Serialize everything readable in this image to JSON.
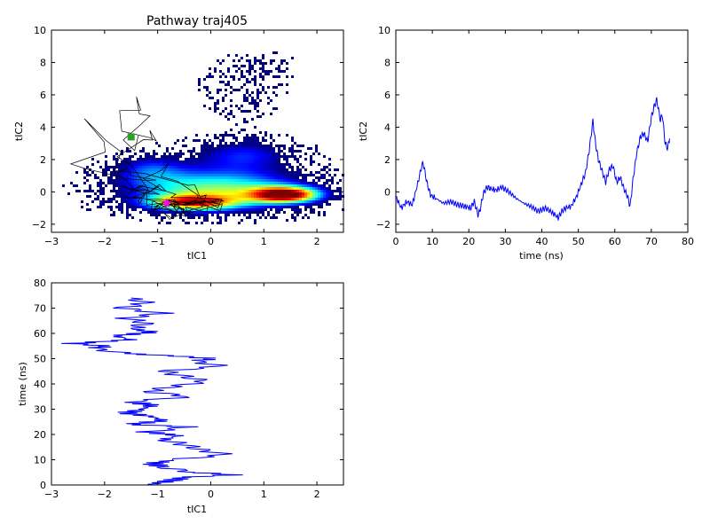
{
  "chart_data": [
    {
      "type": "heatmap",
      "title": "Pathway traj405",
      "xlabel": "tIC1",
      "ylabel": "tIC2",
      "xlim": [
        -3,
        2.5
      ],
      "ylim": [
        -2.5,
        10
      ],
      "xticks": [
        "−3",
        "−2",
        "−1",
        "0",
        "1",
        "2"
      ],
      "yticks": [
        "−2",
        "0",
        "2",
        "4",
        "6",
        "8",
        "10"
      ],
      "density_blobs": [
        {
          "cx": 0.1,
          "cy": 0.2,
          "sx": 1.2,
          "sy": 0.9,
          "w": 1.0
        },
        {
          "cx": 1.4,
          "cy": -0.1,
          "sx": 0.45,
          "sy": 0.35,
          "w": 1.4
        },
        {
          "cx": -0.4,
          "cy": -0.6,
          "sx": 0.6,
          "sy": 0.35,
          "w": 1.0
        },
        {
          "cx": 0.6,
          "cy": 2.4,
          "sx": 0.7,
          "sy": 0.7,
          "w": 0.5
        },
        {
          "cx": -1.2,
          "cy": 1.5,
          "sx": 0.5,
          "sy": 0.7,
          "w": 0.45
        },
        {
          "cx": 0.6,
          "cy": 6.5,
          "sx": 0.55,
          "sy": 1.3,
          "w": 0.18
        },
        {
          "cx": 1.0,
          "cy": 8.0,
          "sx": 0.35,
          "sy": 0.5,
          "w": 0.15
        }
      ],
      "start_marker": {
        "x": -1.5,
        "y": 3.4,
        "color": "#2ca02c"
      },
      "end_marker": {
        "x": -0.83,
        "y": -0.7,
        "color": "#ff00ff"
      },
      "path_color": "#000000"
    },
    {
      "type": "line",
      "xlabel": "time (ns)",
      "ylabel": "tIC2",
      "xlim": [
        0,
        80
      ],
      "ylim": [
        -2.5,
        10
      ],
      "xticks": [
        "0",
        "10",
        "20",
        "30",
        "40",
        "50",
        "60",
        "70",
        "80"
      ],
      "yticks": [
        "−2",
        "0",
        "2",
        "4",
        "6",
        "8",
        "10"
      ],
      "series": [
        {
          "color": "#0000ff",
          "x": [
            0,
            1.5,
            3,
            4.5,
            6,
            7,
            7.5,
            8.5,
            9.5,
            11,
            13,
            15,
            17,
            19,
            20.5,
            21.5,
            22.5,
            23,
            24,
            25,
            26,
            27.5,
            29,
            31,
            33,
            35,
            37,
            39,
            41,
            43,
            44.5,
            45.5,
            46.5,
            48,
            49.5,
            51,
            52,
            53,
            54,
            54.7,
            55.5,
            56.5,
            57.5,
            58.5,
            59.5,
            60.5,
            61.5,
            62.5,
            63.5,
            64.2,
            65,
            66,
            67,
            68,
            69,
            70,
            70.8,
            71.5,
            72.5,
            73,
            73.8,
            74.5,
            75
          ],
          "y": [
            -0.3,
            -1.0,
            -0.6,
            -0.8,
            0.5,
            1.5,
            1.8,
            0.6,
            -0.2,
            -0.4,
            -0.7,
            -0.6,
            -0.8,
            -0.9,
            -1.0,
            -0.6,
            -1.4,
            -1.2,
            -0.1,
            0.3,
            0.2,
            0.1,
            0.3,
            0.0,
            -0.4,
            -0.7,
            -0.9,
            -1.2,
            -1.0,
            -1.3,
            -1.6,
            -1.2,
            -1.0,
            -0.9,
            -0.3,
            0.6,
            1.2,
            2.6,
            4.4,
            3.0,
            2.0,
            1.3,
            0.6,
            1.4,
            1.6,
            0.6,
            0.9,
            0.2,
            -0.3,
            -0.9,
            0.8,
            2.4,
            3.4,
            3.6,
            3.1,
            4.6,
            5.3,
            5.7,
            4.4,
            4.8,
            3.0,
            2.7,
            3.3
          ]
        }
      ]
    },
    {
      "type": "line",
      "xlabel": "tIC1",
      "ylabel": "time (ns)",
      "xlim": [
        -3,
        2.5
      ],
      "ylim": [
        0,
        80
      ],
      "xticks": [
        "−3",
        "−2",
        "−1",
        "0",
        "1",
        "2"
      ],
      "yticks": [
        "0",
        "10",
        "20",
        "30",
        "40",
        "50",
        "60",
        "70",
        "80"
      ],
      "series": [
        {
          "color": "#0000ff",
          "x": [
            -1.2,
            -0.8,
            -0.5,
            0.4,
            -0.3,
            -0.9,
            -1.1,
            -0.7,
            0.3,
            -0.2,
            -0.5,
            -0.9,
            -0.6,
            -1.2,
            -0.4,
            -1.5,
            -0.9,
            -1.1,
            -1.6,
            -1.3,
            -1.1,
            -1.5,
            -0.4,
            -1.2,
            -0.7,
            -0.1,
            -0.5,
            -0.9,
            0.2,
            -0.3,
            0.0,
            -0.6,
            -1.6,
            -2.2,
            -2.0,
            -2.6,
            -1.5,
            -1.8,
            -1.1,
            -1.5,
            -1.2,
            -1.6,
            -0.9,
            -1.7,
            -1.2,
            -1.5
          ],
          "y": [
            0,
            1.5,
            3,
            4,
            5,
            7,
            8.5,
            10,
            12,
            14,
            16,
            18,
            19.5,
            21,
            23,
            24,
            25.5,
            27,
            28.5,
            30,
            31.5,
            33,
            35,
            37,
            39,
            41,
            43,
            45,
            47,
            49,
            50,
            51,
            52,
            54,
            55,
            56,
            57.5,
            59,
            60.5,
            62,
            64,
            66,
            68,
            70,
            72,
            74
          ]
        }
      ]
    }
  ]
}
